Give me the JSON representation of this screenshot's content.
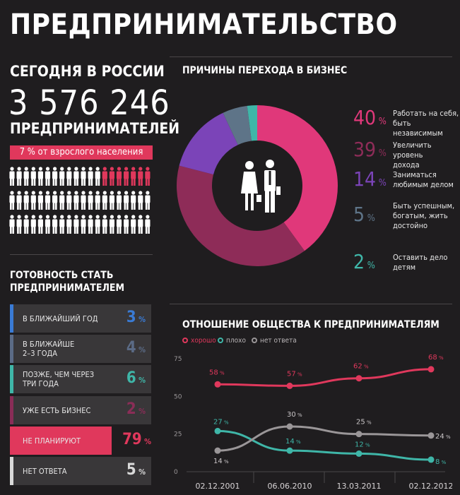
{
  "title": "ПРЕДПРИНИМАТЕЛЬСТВО",
  "stats": {
    "today_label": "СЕГОДНЯ В РОССИИ",
    "number": "3 576 246",
    "label": "ПРЕДПРИНИМАТЕЛЕЙ",
    "badge": "7 % от взрослого населения",
    "highlight_color": "#e0385c",
    "people_total": 60,
    "people_highlighted": 7
  },
  "readiness": {
    "title_line1": "ГОТОВНОСТЬ СТАТЬ",
    "title_line2": "ПРЕДПРИНИМАТЕЛЕМ",
    "rows": [
      {
        "label": [
          "В БЛИЖАЙШИЙ ГОД"
        ],
        "value": "3",
        "pct": "%",
        "color": "#3a7bd5"
      },
      {
        "label": [
          "В БЛИЖАЙШЕ",
          "2–3 ГОДА"
        ],
        "value": "4",
        "pct": "%",
        "color": "#5b6b86"
      },
      {
        "label": [
          "ПОЗЖЕ, ЧЕМ ЧЕРЕЗ",
          "ТРИ ГОДА"
        ],
        "value": "6",
        "pct": "%",
        "color": "#3fb6a8"
      },
      {
        "label": [
          "УЖЕ ЕСТЬ БИЗНЕС"
        ],
        "value": "2",
        "pct": "%",
        "color": "#8a2d57"
      },
      {
        "label": [
          "НЕ ПЛАНИРУЮТ"
        ],
        "value": "79",
        "pct": "%",
        "color": "#e0385c"
      },
      {
        "label": [
          "НЕТ ОТВЕТА"
        ],
        "value": "5",
        "pct": "%",
        "color": "#d9d9d9"
      }
    ]
  },
  "reasons": {
    "title": "ПРИЧИНЫ ПЕРЕХОДА В БИЗНЕС",
    "items": [
      {
        "value": "40",
        "pct": "%",
        "text": [
          "Работать на себя,",
          "быть независимым"
        ],
        "color": "#e0387a"
      },
      {
        "value": "39",
        "pct": "%",
        "text": [
          "Увеличить уровень",
          "дохода"
        ],
        "color": "#8e2c58"
      },
      {
        "value": "14",
        "pct": "%",
        "text": [
          "Заниматься",
          "любимым делом"
        ],
        "color": "#7b44b8"
      },
      {
        "value": "5",
        "pct": "%",
        "text": [
          "Быть успешным,",
          "богатым, жить",
          "достойно"
        ],
        "color": "#5e7488"
      },
      {
        "value": "2",
        "pct": "%",
        "text": [
          "Оставить дело",
          "детям"
        ],
        "color": "#3fb6a8"
      }
    ]
  },
  "chart_data": [
    {
      "type": "pie",
      "title": "ПРИЧИНЫ ПЕРЕХОДА В БИЗНЕС",
      "categories": [
        "Работать на себя, быть независимым",
        "Увеличить уровень дохода",
        "Заниматься любимым делом",
        "Быть успешным, богатым, жить достойно",
        "Оставить дело детям"
      ],
      "values": [
        40,
        39,
        14,
        5,
        2
      ],
      "colors": [
        "#e0387a",
        "#8e2c58",
        "#7b44b8",
        "#5e7488",
        "#3fb6a8"
      ],
      "legend": "right"
    },
    {
      "type": "line",
      "title": "ОТНОШЕНИЕ ОБЩЕСТВА К ПРЕДПРИНИМАТЕЛЯМ",
      "x": [
        "02.12.2001",
        "06.06.2010",
        "13.03.2011",
        "02.12.2012"
      ],
      "ylim": [
        0,
        75
      ],
      "yticks": [
        "0",
        "25",
        "50",
        "75"
      ],
      "pct": "%",
      "series": [
        {
          "name": "хорошо",
          "values": [
            58,
            57,
            62,
            68
          ],
          "labels": [
            "58",
            "57",
            "62",
            "68"
          ],
          "color": "#e0385c"
        },
        {
          "name": "плохо",
          "values": [
            27,
            14,
            12,
            8
          ],
          "labels": [
            "27",
            "14",
            "12",
            "8"
          ],
          "color": "#3fb6a8"
        },
        {
          "name": "нет ответа",
          "values": [
            14,
            30,
            25,
            24
          ],
          "labels": [
            "14",
            "30",
            "25",
            "24"
          ],
          "color": "#9a9698"
        }
      ],
      "legend": "top-left",
      "grid": false
    }
  ]
}
